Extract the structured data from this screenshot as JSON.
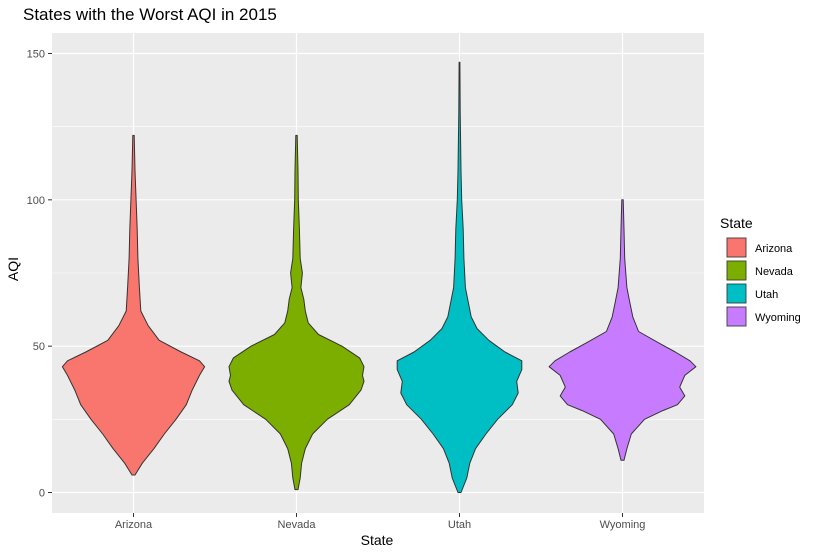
{
  "chart_data": {
    "type": "violin",
    "title": "States with the Worst AQI in 2015",
    "xlabel": "State",
    "ylabel": "AQI",
    "ylim": [
      -7,
      157
    ],
    "yticks": [
      0,
      50,
      100,
      150
    ],
    "categories": [
      "Arizona",
      "Nevada",
      "Utah",
      "Wyoming"
    ],
    "grid": true,
    "legend": {
      "title": "State",
      "placement": "right"
    },
    "series": [
      {
        "name": "Arizona",
        "color": "#F8766D",
        "min": 6,
        "max": 122,
        "profile": [
          [
            6,
            0.02
          ],
          [
            10,
            0.12
          ],
          [
            15,
            0.28
          ],
          [
            20,
            0.42
          ],
          [
            25,
            0.58
          ],
          [
            30,
            0.72
          ],
          [
            35,
            0.8
          ],
          [
            40,
            0.9
          ],
          [
            43,
            0.97
          ],
          [
            45,
            0.9
          ],
          [
            48,
            0.65
          ],
          [
            52,
            0.35
          ],
          [
            57,
            0.2
          ],
          [
            62,
            0.1
          ],
          [
            70,
            0.08
          ],
          [
            80,
            0.06
          ],
          [
            90,
            0.05
          ],
          [
            100,
            0.035
          ],
          [
            110,
            0.02
          ],
          [
            122,
            0.01
          ]
        ]
      },
      {
        "name": "Nevada",
        "color": "#7CAE00",
        "min": 1,
        "max": 122,
        "profile": [
          [
            1,
            0.02
          ],
          [
            5,
            0.05
          ],
          [
            10,
            0.07
          ],
          [
            15,
            0.12
          ],
          [
            20,
            0.22
          ],
          [
            25,
            0.42
          ],
          [
            30,
            0.72
          ],
          [
            35,
            0.88
          ],
          [
            38,
            0.92
          ],
          [
            40,
            0.9
          ],
          [
            43,
            0.92
          ],
          [
            46,
            0.86
          ],
          [
            50,
            0.62
          ],
          [
            54,
            0.3
          ],
          [
            58,
            0.16
          ],
          [
            62,
            0.12
          ],
          [
            66,
            0.1
          ],
          [
            70,
            0.06
          ],
          [
            75,
            0.08
          ],
          [
            80,
            0.05
          ],
          [
            90,
            0.04
          ],
          [
            100,
            0.025
          ],
          [
            110,
            0.02
          ],
          [
            122,
            0.01
          ]
        ]
      },
      {
        "name": "Utah",
        "color": "#00BFC4",
        "min": 0,
        "max": 147,
        "profile": [
          [
            0,
            0.02
          ],
          [
            5,
            0.1
          ],
          [
            10,
            0.14
          ],
          [
            15,
            0.22
          ],
          [
            20,
            0.36
          ],
          [
            25,
            0.52
          ],
          [
            30,
            0.72
          ],
          [
            34,
            0.8
          ],
          [
            38,
            0.78
          ],
          [
            42,
            0.85
          ],
          [
            45,
            0.85
          ],
          [
            48,
            0.62
          ],
          [
            52,
            0.4
          ],
          [
            56,
            0.24
          ],
          [
            60,
            0.16
          ],
          [
            65,
            0.12
          ],
          [
            70,
            0.08
          ],
          [
            80,
            0.06
          ],
          [
            90,
            0.05
          ],
          [
            100,
            0.03
          ],
          [
            110,
            0.02
          ],
          [
            120,
            0.015
          ],
          [
            130,
            0.01
          ],
          [
            147,
            0.005
          ]
        ]
      },
      {
        "name": "Wyoming",
        "color": "#C77CFF",
        "min": 11,
        "max": 100,
        "profile": [
          [
            11,
            0.02
          ],
          [
            15,
            0.06
          ],
          [
            20,
            0.12
          ],
          [
            25,
            0.3
          ],
          [
            28,
            0.55
          ],
          [
            30,
            0.75
          ],
          [
            33,
            0.85
          ],
          [
            36,
            0.78
          ],
          [
            40,
            0.85
          ],
          [
            43,
            1.0
          ],
          [
            45,
            0.92
          ],
          [
            48,
            0.72
          ],
          [
            51,
            0.5
          ],
          [
            55,
            0.22
          ],
          [
            60,
            0.14
          ],
          [
            65,
            0.1
          ],
          [
            70,
            0.06
          ],
          [
            80,
            0.03
          ],
          [
            90,
            0.02
          ],
          [
            100,
            0.01
          ]
        ]
      }
    ]
  }
}
